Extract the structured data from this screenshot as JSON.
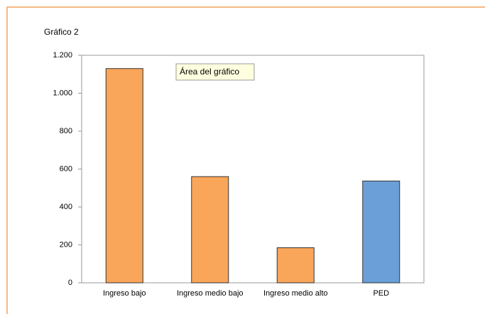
{
  "chart_data": {
    "type": "bar",
    "title": "Gráfico 2",
    "annotation": "Área del gráfico",
    "categories": [
      "Ingreso bajo",
      "Ingreso medio bajo",
      "Ingreso medio alto",
      "PED"
    ],
    "values": [
      1130,
      560,
      185,
      537
    ],
    "colors": [
      "#f9a65a",
      "#f9a65a",
      "#f9a65a",
      "#6a9fd8"
    ],
    "ylim": [
      0,
      1200
    ],
    "yticks": [
      0,
      200,
      400,
      600,
      800,
      {
        "value": 1000,
        "label": "1.000"
      },
      {
        "value": 1200,
        "label": "1.200"
      }
    ],
    "grid": false
  }
}
